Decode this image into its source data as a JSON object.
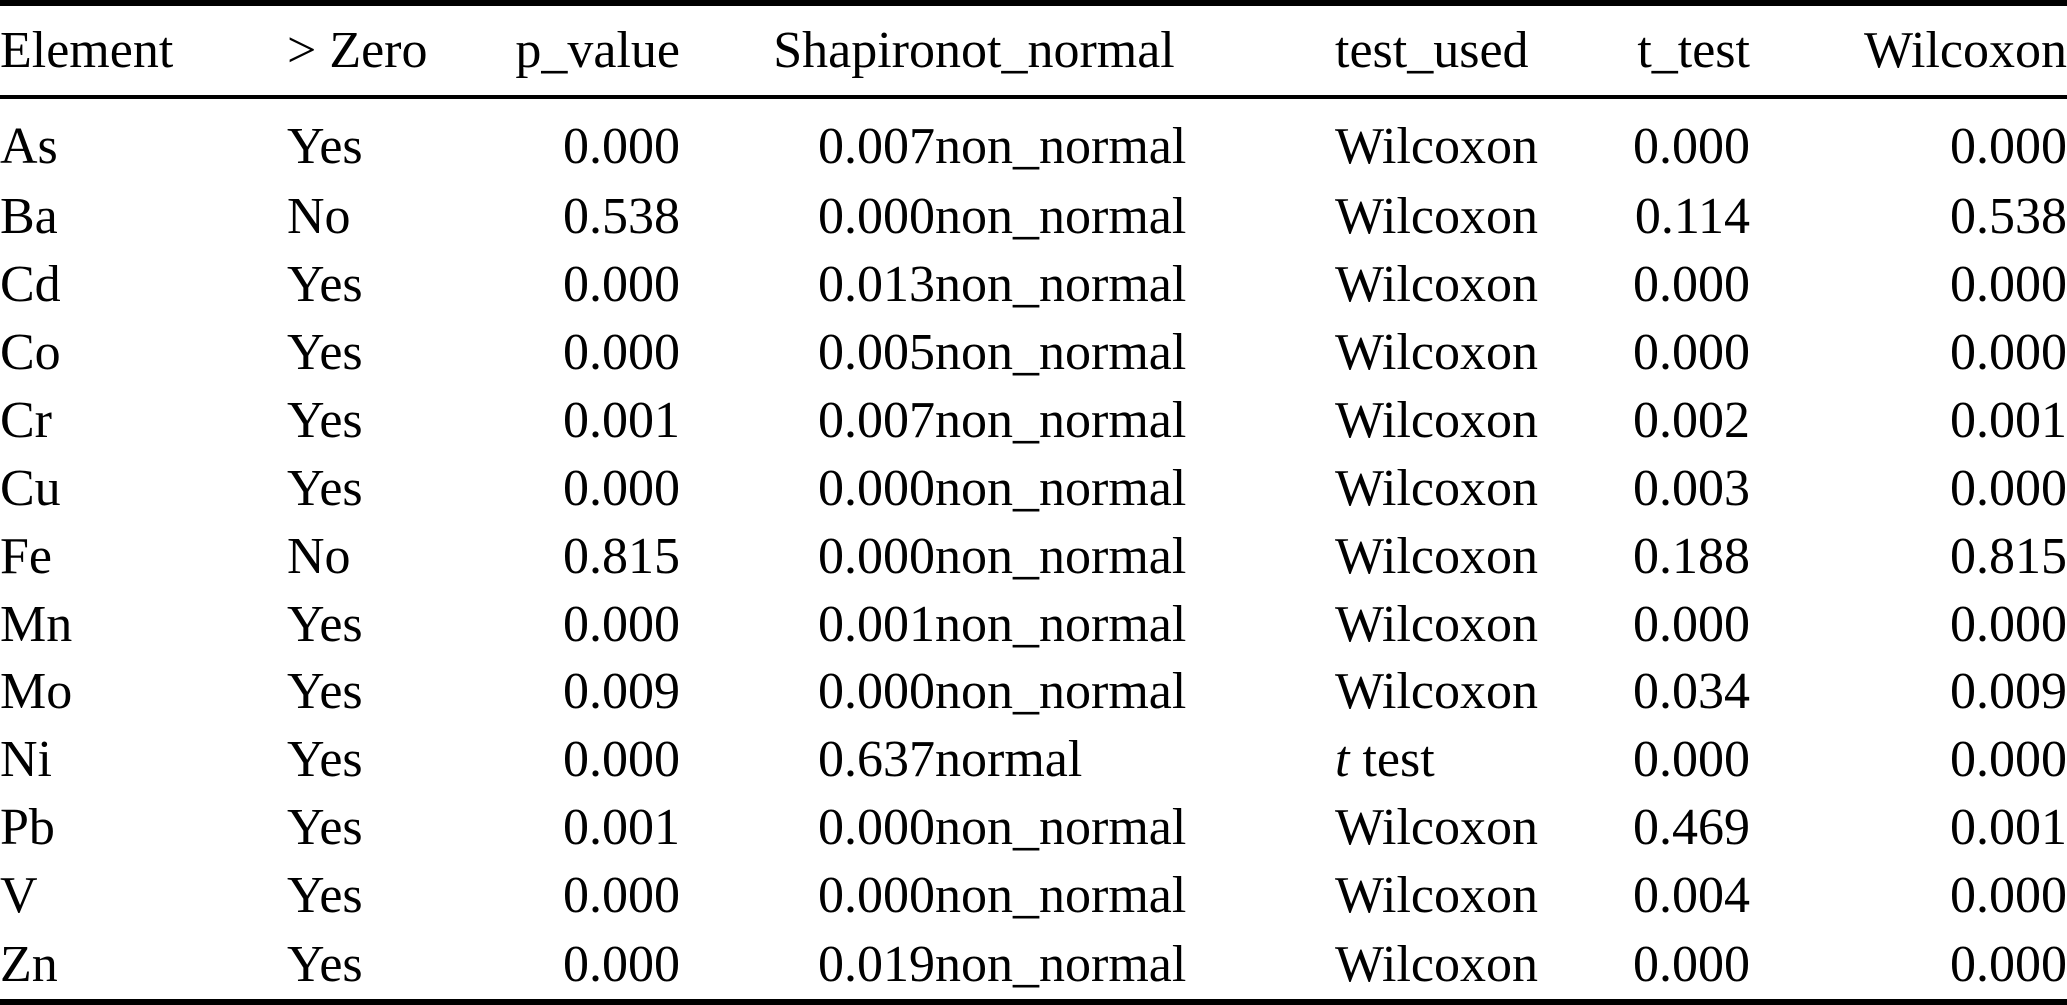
{
  "table": {
    "columns": [
      {
        "key": "element",
        "label": "Element",
        "align": "left"
      },
      {
        "key": "gt_zero",
        "label": "> Zero",
        "align": "left"
      },
      {
        "key": "p_value",
        "label": "p_value",
        "align": "right"
      },
      {
        "key": "shapiro",
        "label": "Shapiro",
        "align": "right"
      },
      {
        "key": "not_normal",
        "label": "not_normal",
        "align": "left"
      },
      {
        "key": "test_used",
        "label": "test_used",
        "align": "left"
      },
      {
        "key": "t_test",
        "label": "t_test",
        "align": "right"
      },
      {
        "key": "wilcoxon",
        "label": "Wilcoxon",
        "align": "right"
      }
    ],
    "rows": [
      {
        "element": "As",
        "gt_zero": "Yes",
        "p_value": "0.000",
        "shapiro": "0.007",
        "not_normal": "non_normal",
        "test_used": "Wilcoxon",
        "t_test": "0.000",
        "wilcoxon": "0.000"
      },
      {
        "element": "Ba",
        "gt_zero": "No",
        "p_value": "0.538",
        "shapiro": "0.000",
        "not_normal": "non_normal",
        "test_used": "Wilcoxon",
        "t_test": "0.114",
        "wilcoxon": "0.538"
      },
      {
        "element": "Cd",
        "gt_zero": "Yes",
        "p_value": "0.000",
        "shapiro": "0.013",
        "not_normal": "non_normal",
        "test_used": "Wilcoxon",
        "t_test": "0.000",
        "wilcoxon": "0.000"
      },
      {
        "element": "Co",
        "gt_zero": "Yes",
        "p_value": "0.000",
        "shapiro": "0.005",
        "not_normal": "non_normal",
        "test_used": "Wilcoxon",
        "t_test": "0.000",
        "wilcoxon": "0.000"
      },
      {
        "element": "Cr",
        "gt_zero": "Yes",
        "p_value": "0.001",
        "shapiro": "0.007",
        "not_normal": "non_normal",
        "test_used": "Wilcoxon",
        "t_test": "0.002",
        "wilcoxon": "0.001"
      },
      {
        "element": "Cu",
        "gt_zero": "Yes",
        "p_value": "0.000",
        "shapiro": "0.000",
        "not_normal": "non_normal",
        "test_used": "Wilcoxon",
        "t_test": "0.003",
        "wilcoxon": "0.000"
      },
      {
        "element": "Fe",
        "gt_zero": "No",
        "p_value": "0.815",
        "shapiro": "0.000",
        "not_normal": "non_normal",
        "test_used": "Wilcoxon",
        "t_test": "0.188",
        "wilcoxon": "0.815"
      },
      {
        "element": "Mn",
        "gt_zero": "Yes",
        "p_value": "0.000",
        "shapiro": "0.001",
        "not_normal": "non_normal",
        "test_used": "Wilcoxon",
        "t_test": "0.000",
        "wilcoxon": "0.000"
      },
      {
        "element": "Mo",
        "gt_zero": "Yes",
        "p_value": "0.009",
        "shapiro": "0.000",
        "not_normal": "non_normal",
        "test_used": "Wilcoxon",
        "t_test": "0.034",
        "wilcoxon": "0.009"
      },
      {
        "element": "Ni",
        "gt_zero": "Yes",
        "p_value": "0.000",
        "shapiro": "0.637",
        "not_normal": "normal",
        "test_used": "t test",
        "test_used_italic_prefix": "t",
        "test_used_rest": " test",
        "t_test": "0.000",
        "wilcoxon": "0.000"
      },
      {
        "element": "Pb",
        "gt_zero": "Yes",
        "p_value": "0.001",
        "shapiro": "0.000",
        "not_normal": "non_normal",
        "test_used": "Wilcoxon",
        "t_test": "0.469",
        "wilcoxon": "0.001"
      },
      {
        "element": "V",
        "gt_zero": "Yes",
        "p_value": "0.000",
        "shapiro": "0.000",
        "not_normal": "non_normal",
        "test_used": "Wilcoxon",
        "t_test": "0.004",
        "wilcoxon": "0.000"
      },
      {
        "element": "Zn",
        "gt_zero": "Yes",
        "p_value": "0.000",
        "shapiro": "0.019",
        "not_normal": "non_normal",
        "test_used": "Wilcoxon",
        "t_test": "0.000",
        "wilcoxon": "0.000"
      }
    ],
    "text_color": "#000000",
    "background_color": "#ffffff"
  }
}
